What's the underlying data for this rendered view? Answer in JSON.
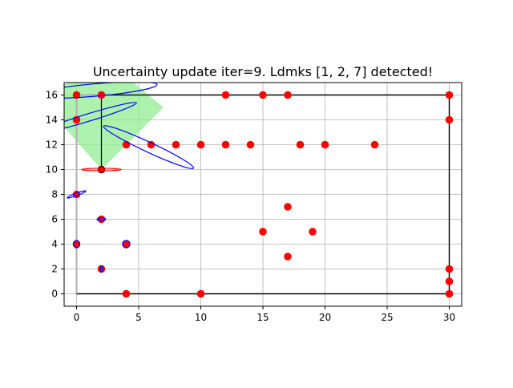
{
  "chart_data": {
    "type": "scatter",
    "title": "Uncertainty update iter=9. Ldmks [1, 2, 7] detected!",
    "xlabel": "",
    "ylabel": "",
    "xlim": [
      -1,
      31
    ],
    "ylim": [
      -1,
      17
    ],
    "xticks": [
      0,
      5,
      10,
      15,
      20,
      25,
      30
    ],
    "yticks": [
      0,
      2,
      4,
      6,
      8,
      10,
      12,
      14,
      16
    ],
    "grid": true,
    "legend": "none",
    "colors": {
      "landmark": "#ff0000",
      "ellipse": "#0000ff",
      "detected_ellipse": "#ff0000",
      "field_of_view": "#90ee90",
      "true_path": "#000000",
      "estimated_path": "#b0b0b0",
      "grid": "#b0b0b0"
    },
    "landmarks": [
      [
        0,
        16
      ],
      [
        2,
        16
      ],
      [
        12,
        16
      ],
      [
        15,
        16
      ],
      [
        17,
        16
      ],
      [
        30,
        16
      ],
      [
        0,
        14
      ],
      [
        30,
        14
      ],
      [
        4,
        12
      ],
      [
        6,
        12
      ],
      [
        8,
        12
      ],
      [
        10,
        12
      ],
      [
        12,
        12
      ],
      [
        14,
        12
      ],
      [
        18,
        12
      ],
      [
        20,
        12
      ],
      [
        24,
        12
      ],
      [
        2,
        10
      ],
      [
        0,
        8
      ],
      [
        2,
        6
      ],
      [
        17,
        7
      ],
      [
        0,
        4
      ],
      [
        4,
        4
      ],
      [
        15,
        5
      ],
      [
        19,
        5
      ],
      [
        17,
        3
      ],
      [
        2,
        2
      ],
      [
        30,
        2
      ],
      [
        30,
        1
      ],
      [
        4,
        0
      ],
      [
        10,
        0
      ],
      [
        30,
        0
      ]
    ],
    "true_path": [
      [
        2,
        10
      ],
      [
        2,
        16
      ],
      [
        30,
        16
      ],
      [
        30,
        0
      ],
      [
        0,
        0
      ]
    ],
    "estimated_path": [
      [
        0,
        0
      ],
      [
        0,
        16
      ],
      [
        30,
        16
      ],
      [
        30,
        0
      ],
      [
        0,
        0
      ]
    ],
    "robot_pose": [
      2,
      10
    ],
    "field_of_view": [
      [
        2,
        10
      ],
      [
        7,
        15
      ],
      [
        4,
        17.5
      ],
      [
        0,
        17.5
      ],
      [
        -1.5,
        16.5
      ],
      [
        -1.5,
        14
      ]
    ],
    "uncertainty_ellipses": [
      {
        "center": [
          0,
          4
        ],
        "rx": 0.25,
        "ry": 0.3,
        "angle": 0
      },
      {
        "center": [
          4,
          4
        ],
        "rx": 0.3,
        "ry": 0.3,
        "angle": 0
      },
      {
        "center": [
          2,
          6
        ],
        "rx": 0.35,
        "ry": 0.12,
        "angle": 0
      },
      {
        "center": [
          2,
          2
        ],
        "rx": 0.1,
        "ry": 0.25,
        "angle": 0
      },
      {
        "center": [
          0,
          8
        ],
        "rx": 0.8,
        "ry": 0.1,
        "angle": 20
      },
      {
        "center": [
          1,
          14.2
        ],
        "rx": 4.0,
        "ry": 0.3,
        "angle": 17
      },
      {
        "center": [
          1.5,
          16.4
        ],
        "rx": 5.0,
        "ry": 0.5,
        "angle": 5
      },
      {
        "center": [
          5.8,
          11.8
        ],
        "rx": 4.0,
        "ry": 0.4,
        "angle": -25
      }
    ],
    "detected_ellipses": [
      {
        "center": [
          2,
          10
        ],
        "rx": 1.6,
        "ry": 0.1,
        "angle": 0
      }
    ]
  }
}
